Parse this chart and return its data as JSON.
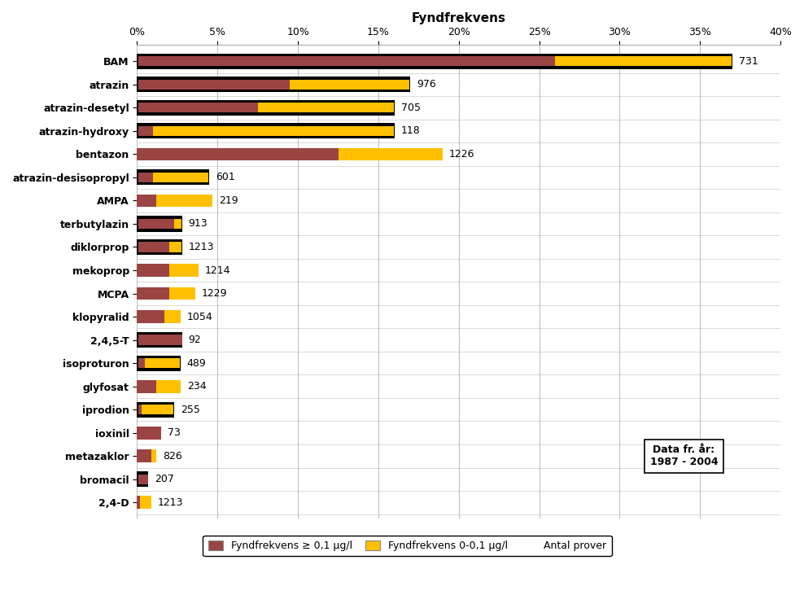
{
  "title": "Fyndfrekvens",
  "categories": [
    "BAM",
    "atrazin",
    "atrazin-desetyl",
    "atrazin-hydroxy",
    "bentazon",
    "atrazin-desisopropyl",
    "AMPA",
    "terbutylazin",
    "diklorprop",
    "mekoprop",
    "MCPA",
    "klopyralid",
    "2,4,5-T",
    "isoproturon",
    "glyfosat",
    "iprodion",
    "ioxinil",
    "metazaklor",
    "bromacil",
    "2,4-D"
  ],
  "brown_vals": [
    26.0,
    9.5,
    7.5,
    1.0,
    12.5,
    1.0,
    1.2,
    2.3,
    2.0,
    2.0,
    2.0,
    1.7,
    2.8,
    0.5,
    1.2,
    0.3,
    1.5,
    0.9,
    0.7,
    0.2
  ],
  "yellow_vals": [
    11.0,
    7.5,
    8.5,
    15.0,
    6.5,
    3.5,
    3.5,
    0.5,
    0.8,
    1.8,
    1.6,
    1.0,
    0.0,
    2.2,
    1.5,
    2.0,
    0.0,
    0.3,
    0.0,
    0.7
  ],
  "counts": [
    731,
    976,
    705,
    118,
    1226,
    601,
    219,
    913,
    1213,
    1214,
    1229,
    1054,
    92,
    489,
    234,
    255,
    73,
    826,
    207,
    1213
  ],
  "black_border": [
    true,
    true,
    true,
    true,
    false,
    true,
    false,
    true,
    true,
    false,
    false,
    false,
    true,
    true,
    false,
    true,
    false,
    false,
    true,
    false
  ],
  "brown_color": "#9b4444",
  "yellow_color": "#ffc000",
  "xlim": [
    0,
    40
  ],
  "xticks": [
    0,
    5,
    10,
    15,
    20,
    25,
    30,
    35,
    40
  ],
  "xlabel": "Fyndfrekvens",
  "legend_brown": "Fyndfrekvens ≥ 0,1 μg/l",
  "legend_yellow": "Fyndfrekvens 0-0,1 μg/l",
  "legend_count": "Antal prover",
  "annotation": "Data fr. år:\n1987 - 2004",
  "background_color": "#ffffff"
}
